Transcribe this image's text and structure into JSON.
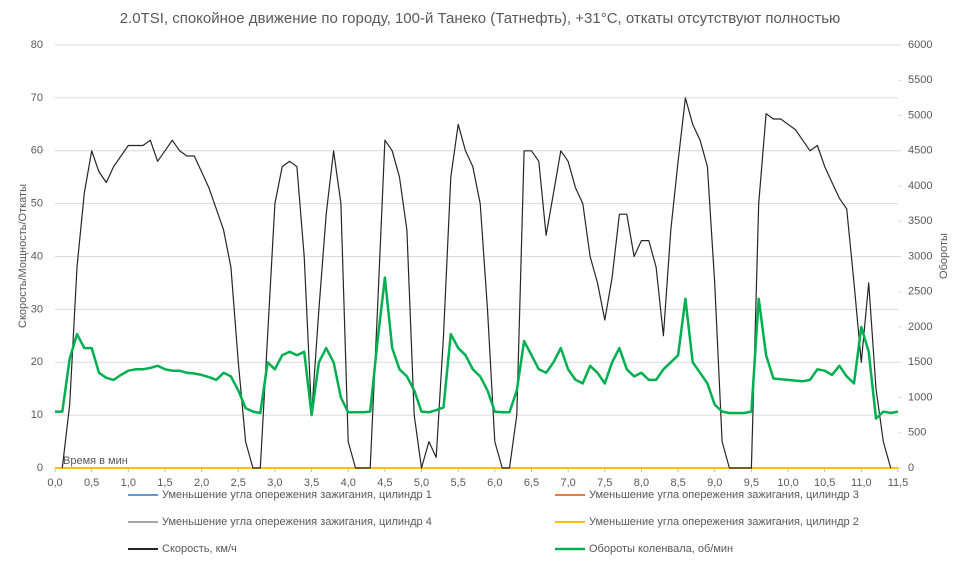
{
  "chart_data": {
    "type": "line",
    "title": "2.0TSI, спокойное движение по городу, 100-й Танеко (Татнефть), +31°C, откаты отсутствуют полностью",
    "x_label": "Время в мин",
    "y_label": "Скорость/Мощность/Откаты",
    "y2_label": "Обороты",
    "x": [
      0,
      0.1,
      0.2,
      0.3,
      0.4,
      0.5,
      0.6,
      0.7,
      0.8,
      0.9,
      1,
      1.1,
      1.2,
      1.3,
      1.4,
      1.5,
      1.6,
      1.7,
      1.8,
      1.9,
      2,
      2.1,
      2.2,
      2.3,
      2.4,
      2.5,
      2.6,
      2.7,
      2.8,
      2.9,
      3,
      3.1,
      3.2,
      3.3,
      3.4,
      3.5,
      3.6,
      3.7,
      3.8,
      3.9,
      4,
      4.1,
      4.2,
      4.3,
      4.4,
      4.5,
      4.6,
      4.7,
      4.8,
      4.9,
      5,
      5.1,
      5.2,
      5.3,
      5.4,
      5.5,
      5.6,
      5.7,
      5.8,
      5.9,
      6,
      6.1,
      6.2,
      6.3,
      6.4,
      6.5,
      6.6,
      6.7,
      6.8,
      6.9,
      7,
      7.1,
      7.2,
      7.3,
      7.4,
      7.5,
      7.6,
      7.7,
      7.8,
      7.9,
      8,
      8.1,
      8.2,
      8.3,
      8.4,
      8.5,
      8.6,
      8.7,
      8.8,
      8.9,
      9,
      9.1,
      9.2,
      9.3,
      9.4,
      9.5,
      9.6,
      9.7,
      9.8,
      9.9,
      10,
      10.1,
      10.2,
      10.3,
      10.4,
      10.5,
      10.6,
      10.7,
      10.8,
      10.9,
      11,
      11.1,
      11.2,
      11.3,
      11.4,
      11.5
    ],
    "series": [
      {
        "name": "Уменьшение угла опережения зажигания, цилиндр 1",
        "color": "#5b9bd5",
        "x": [
          0,
          11.5
        ],
        "values": [
          0,
          0
        ]
      },
      {
        "name": "Уменьшение угла опережения зажигания, цилиндр 3",
        "color": "#ed7d31",
        "x": [
          0,
          11.5
        ],
        "values": [
          0,
          0
        ]
      },
      {
        "name": "Уменьшение угла опережения зажигания, цилиндр 4",
        "color": "#a5a5a5",
        "x": [
          0,
          11.5
        ],
        "values": [
          0,
          0
        ]
      },
      {
        "name": "Уменьшение угла опережения зажигания, цилиндр 2",
        "color": "#ffc000",
        "x": [
          0,
          11.5
        ],
        "values": [
          0,
          0
        ]
      },
      {
        "name": "Скорость, км/ч",
        "color": "#262626",
        "values": [
          null,
          0,
          12,
          38,
          52,
          60,
          56,
          54,
          57,
          59,
          61,
          61,
          61,
          62,
          58,
          60,
          62,
          60,
          59,
          59,
          56,
          53,
          49,
          45,
          38,
          20,
          5,
          0,
          0,
          25,
          50,
          57,
          58,
          57,
          40,
          10,
          30,
          48,
          60,
          50,
          5,
          0,
          0,
          0,
          30,
          62,
          60,
          55,
          45,
          10,
          0,
          5,
          2,
          25,
          55,
          65,
          60,
          57,
          50,
          30,
          5,
          0,
          0,
          10,
          60,
          60,
          58,
          44,
          52,
          60,
          58,
          53,
          50,
          40,
          35,
          28,
          36,
          48,
          48,
          40,
          43,
          43,
          38,
          25,
          45,
          58,
          70,
          65,
          62,
          57,
          35,
          5,
          0,
          0,
          0,
          0,
          50,
          67,
          66,
          66,
          65,
          64,
          62,
          60,
          61,
          57,
          54,
          51,
          49,
          35,
          20,
          35,
          15,
          5,
          0,
          null
        ]
      },
      {
        "name": "Обороты коленвала, об/мин",
        "color": "#00b050",
        "axis": "y2",
        "values": [
          800,
          800,
          1550,
          1900,
          1700,
          1700,
          1350,
          1280,
          1250,
          1320,
          1380,
          1400,
          1400,
          1420,
          1450,
          1400,
          1380,
          1380,
          1350,
          1340,
          1320,
          1290,
          1250,
          1350,
          1300,
          1100,
          850,
          800,
          780,
          1500,
          1400,
          1600,
          1650,
          1600,
          1650,
          750,
          1500,
          1700,
          1500,
          1000,
          790,
          790,
          790,
          800,
          1800,
          2700,
          1700,
          1400,
          1300,
          1100,
          800,
          790,
          820,
          860,
          1900,
          1700,
          1600,
          1400,
          1300,
          1100,
          800,
          790,
          790,
          1100,
          1800,
          1600,
          1400,
          1350,
          1500,
          1700,
          1400,
          1250,
          1200,
          1450,
          1350,
          1200,
          1500,
          1700,
          1400,
          1300,
          1350,
          1250,
          1250,
          1400,
          1500,
          1600,
          2400,
          1500,
          1350,
          1200,
          900,
          800,
          780,
          780,
          780,
          800,
          2400,
          1600,
          1270,
          1260,
          1250,
          1240,
          1230,
          1250,
          1400,
          1380,
          1320,
          1450,
          1300,
          1200,
          2000,
          1650,
          700,
          800,
          780,
          800
        ]
      }
    ],
    "xlim": [
      0,
      11.5
    ],
    "xticks": [
      {
        "value": 0,
        "label": "0,0"
      },
      {
        "value": 0.5,
        "label": "0,5"
      },
      {
        "value": 1,
        "label": "1,0"
      },
      {
        "value": 1.5,
        "label": "1,5"
      },
      {
        "value": 2,
        "label": "2,0"
      },
      {
        "value": 2.5,
        "label": "2,5"
      },
      {
        "value": 3,
        "label": "3,0"
      },
      {
        "value": 3.5,
        "label": "3,5"
      },
      {
        "value": 4,
        "label": "4,0"
      },
      {
        "value": 4.5,
        "label": "4,5"
      },
      {
        "value": 5,
        "label": "5,0"
      },
      {
        "value": 5.5,
        "label": "5,5"
      },
      {
        "value": 6,
        "label": "6,0"
      },
      {
        "value": 6.5,
        "label": "6,5"
      },
      {
        "value": 7,
        "label": "7,0"
      },
      {
        "value": 7.5,
        "label": "7,5"
      },
      {
        "value": 8,
        "label": "8,0"
      },
      {
        "value": 8.5,
        "label": "8,5"
      },
      {
        "value": 9,
        "label": "9,0"
      },
      {
        "value": 9.5,
        "label": "9,5"
      },
      {
        "value": 10,
        "label": "10,0"
      },
      {
        "value": 10.5,
        "label": "10,5"
      },
      {
        "value": 11,
        "label": "11,0"
      },
      {
        "value": 11.5,
        "label": "11,5"
      }
    ],
    "ylim": [
      0,
      80
    ],
    "yticks": [
      0,
      10,
      20,
      30,
      40,
      50,
      60,
      70,
      80
    ],
    "y2lim": [
      0,
      6000
    ],
    "y2ticks": [
      0,
      500,
      1000,
      1500,
      2000,
      2500,
      3000,
      3500,
      4000,
      4500,
      5000,
      5500,
      6000
    ],
    "grid": true
  }
}
